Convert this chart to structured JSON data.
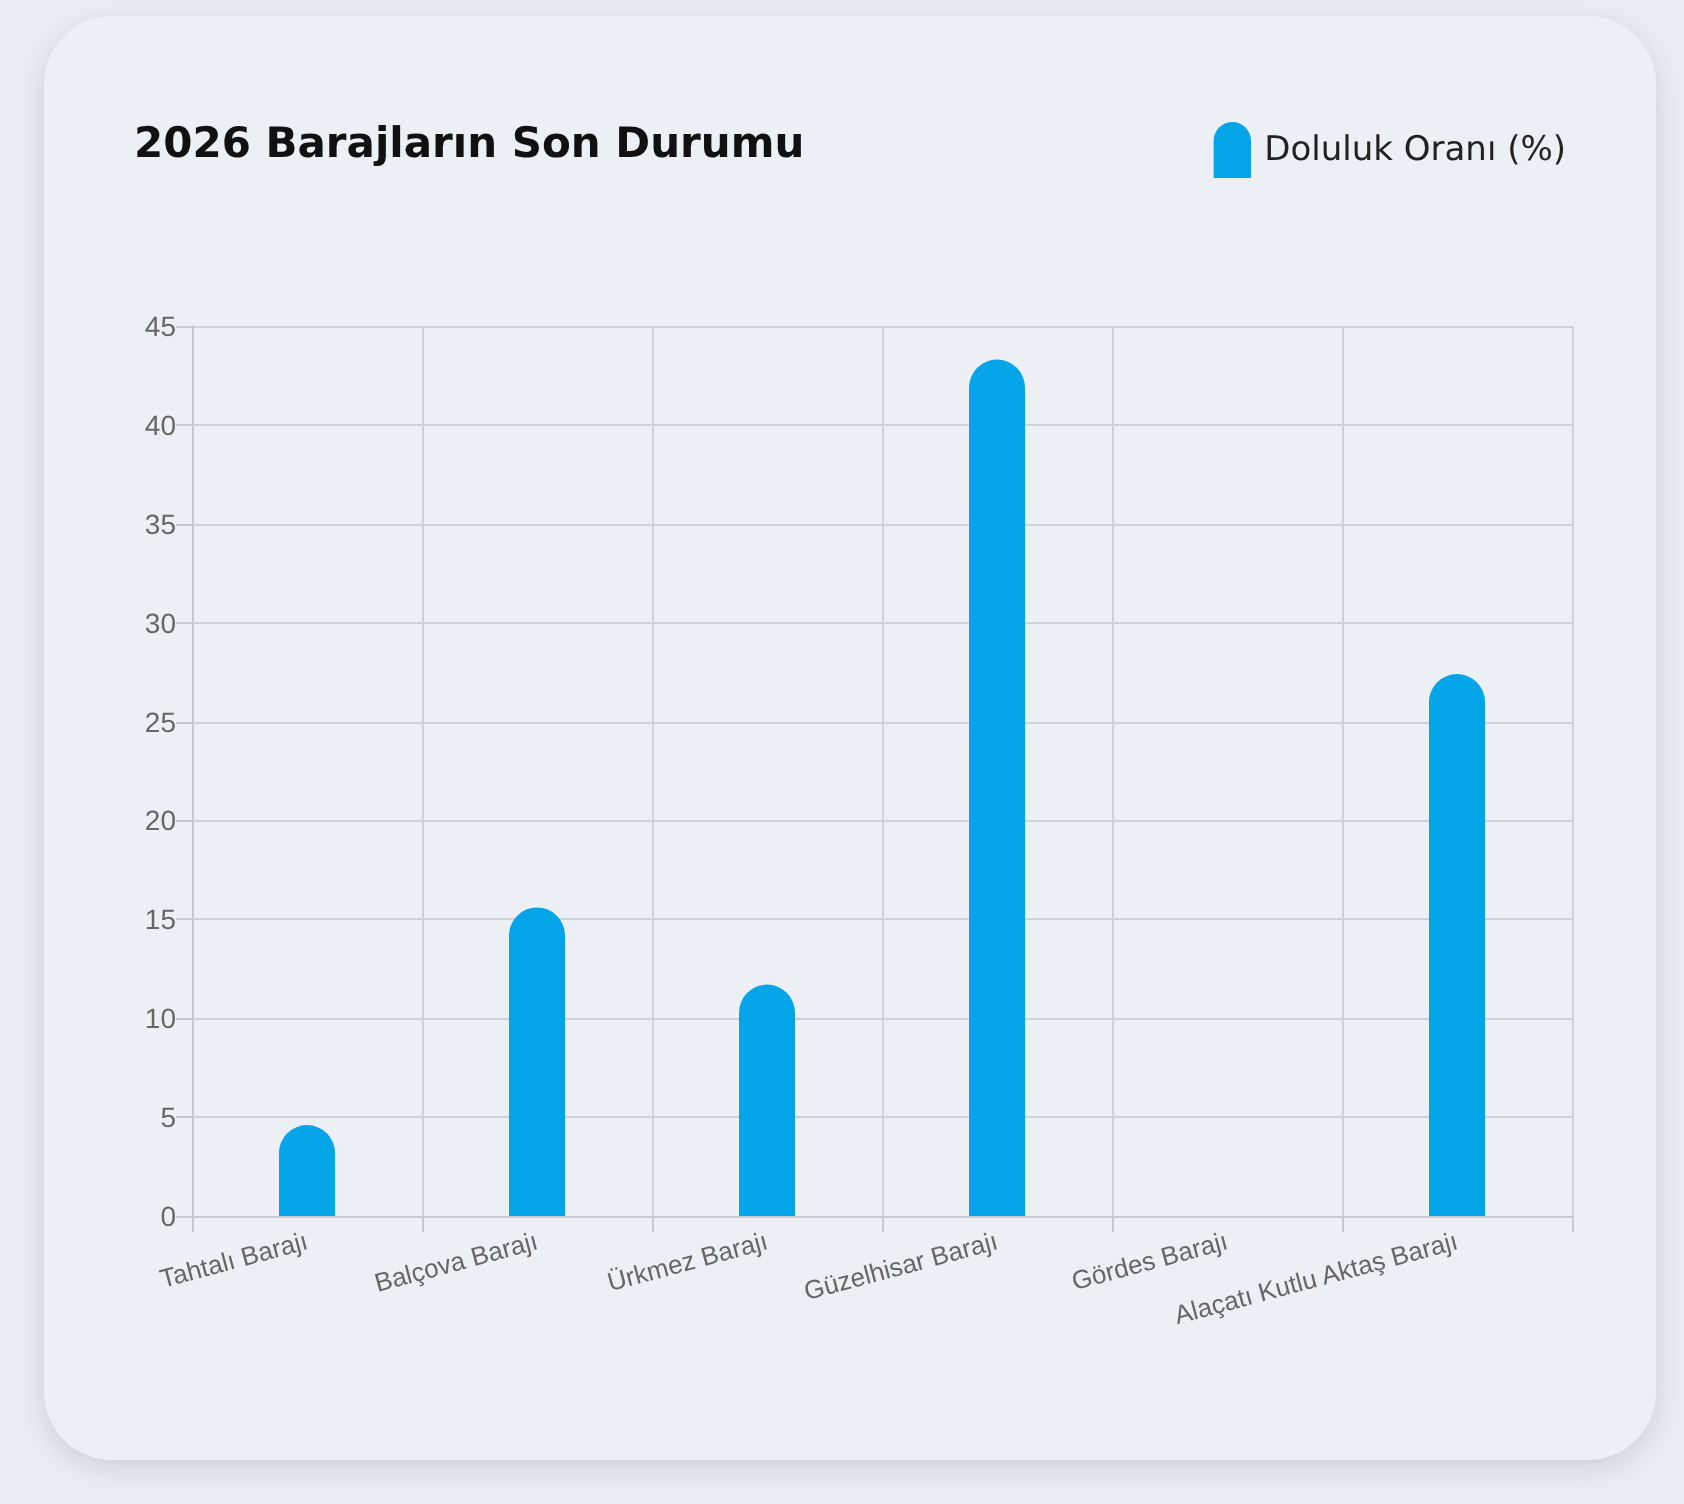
{
  "chart_data": {
    "type": "bar",
    "title": "2026 Barajların Son Durumu",
    "categories": [
      "Tahtalı Barajı",
      "Balçova Barajı",
      "Ürkmez Barajı",
      "Güzelhisar Barajı",
      "Gördes Barajı",
      "Alaçatı Kutlu Aktaş Barajı"
    ],
    "series": [
      {
        "name": "Doluluk Oranı (%)",
        "color": "#03a4e8",
        "values": [
          4.6,
          15.6,
          11.7,
          43.3,
          0,
          27.4
        ]
      }
    ],
    "ylim": [
      0,
      45
    ],
    "yticks": [
      0,
      5,
      10,
      15,
      20,
      25,
      30,
      35,
      40,
      45
    ],
    "grid": true,
    "legend": "top right"
  }
}
